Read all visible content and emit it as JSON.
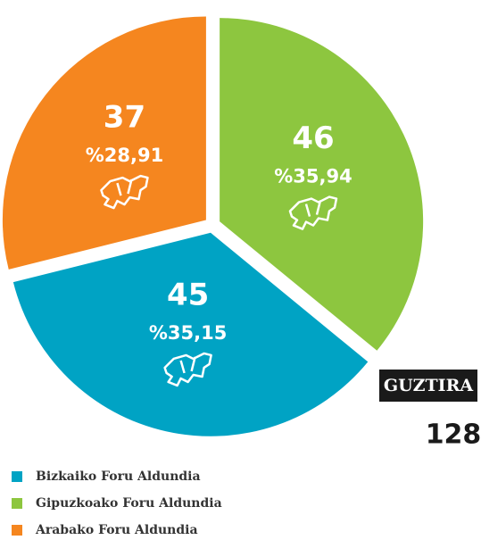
{
  "chart_data": {
    "type": "pie",
    "categories": [
      "Bizkaiko Foru Aldundia",
      "Gipuzkoako Foru Aldundia",
      "Arabako Foru Aldundia"
    ],
    "values": [
      45,
      46,
      37
    ],
    "percent_values": [
      35.15,
      35.94,
      28.91
    ],
    "percent_labels": [
      "%35,15",
      "%35,94",
      "%28,91"
    ],
    "colors": [
      "#00a3c4",
      "#8dc63f",
      "#f5861f"
    ],
    "slice_order": [
      1,
      0,
      2
    ],
    "total_label": "GUZTIRA",
    "total": 128
  }
}
